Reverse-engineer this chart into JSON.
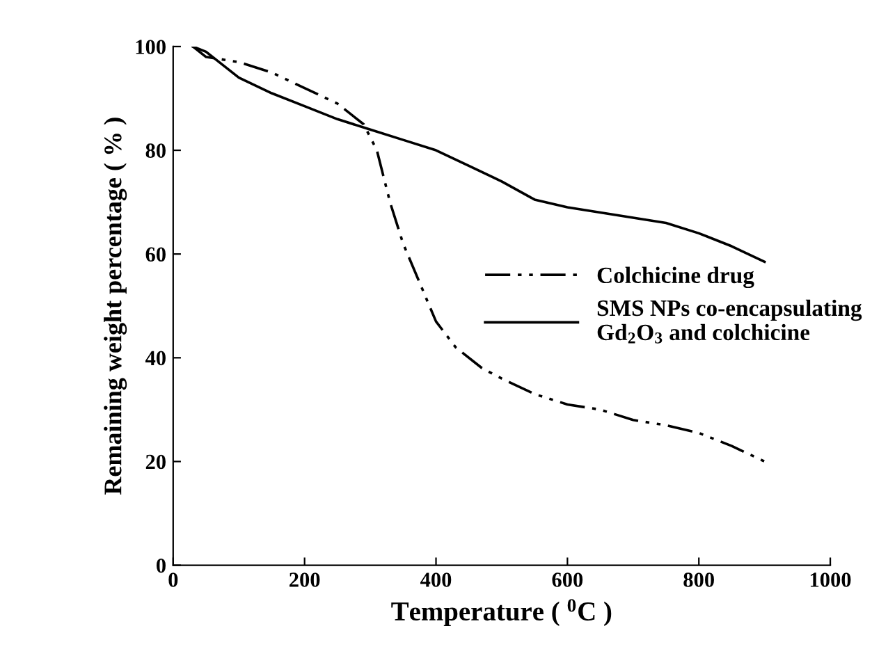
{
  "chart_data": {
    "type": "line",
    "xlabel": "Temperature ( $^{0}$C )",
    "ylabel": "Remaining weight percentage ( % )",
    "xlim": [
      0,
      1000
    ],
    "xticks": [
      0,
      200,
      400,
      600,
      800,
      1000
    ],
    "ylim": [
      0,
      100
    ],
    "yticks": [
      0,
      20,
      40,
      60,
      80,
      100
    ],
    "grid": false,
    "legend": "right",
    "marker": "none",
    "series": [
      {
        "name": "Colchicine drug",
        "color": "#000000",
        "line_style": "dashdotdot",
        "x": [
          30,
          50,
          100,
          150,
          200,
          250,
          290,
          310,
          330,
          350,
          380,
          400,
          430,
          470,
          500,
          550,
          600,
          650,
          700,
          750,
          800,
          850,
          900
        ],
        "values": [
          100,
          98,
          97,
          95,
          92,
          89,
          85,
          80,
          70,
          62,
          53,
          47,
          42,
          38,
          36,
          33,
          31,
          30,
          28,
          27,
          25.5,
          23,
          20
        ]
      },
      {
        "name": "SMS NPs co-encapsulating\nGd$_{2}$O$_{3}$ and colchicine",
        "color": "#000000",
        "line_style": "solid",
        "x": [
          30,
          50,
          100,
          150,
          200,
          250,
          300,
          350,
          400,
          450,
          500,
          550,
          600,
          650,
          700,
          750,
          800,
          850,
          900
        ],
        "values": [
          100,
          99,
          94,
          91,
          88.5,
          86,
          84,
          82,
          80,
          77,
          74,
          70.5,
          69,
          68,
          67,
          66,
          64,
          61.5,
          58.5
        ]
      }
    ]
  }
}
